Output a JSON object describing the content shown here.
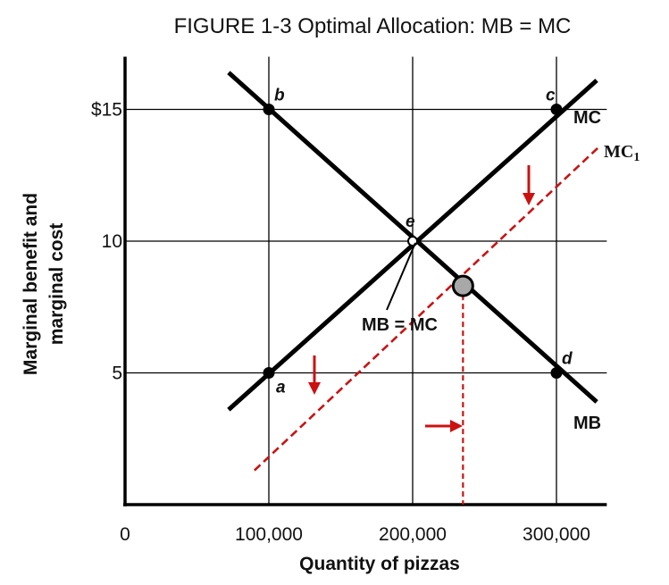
{
  "chart_data": {
    "type": "line",
    "title": "FIGURE 1-3   Optimal Allocation: MB = MC",
    "xlabel": "Quantity of pizzas",
    "ylabel_line1": "Marginal benefit and",
    "ylabel_line2": "marginal cost",
    "x_ticks": [
      {
        "value": 0,
        "label": "0"
      },
      {
        "value": 100000,
        "label": "100,000"
      },
      {
        "value": 200000,
        "label": "200,000"
      },
      {
        "value": 300000,
        "label": "300,000"
      }
    ],
    "y_ticks": [
      {
        "value": 5,
        "label": "5"
      },
      {
        "value": 10,
        "label": "10"
      },
      {
        "value": 15,
        "label": "$15"
      }
    ],
    "xlim": [
      0,
      335000
    ],
    "ylim": [
      0,
      17
    ],
    "series": [
      {
        "name": "MB",
        "color": "#000000",
        "style": "solid",
        "x": [
          72000,
          328000
        ],
        "y": [
          16.4,
          3.9
        ]
      },
      {
        "name": "MC",
        "color": "#000000",
        "style": "solid",
        "x": [
          72000,
          328000
        ],
        "y": [
          3.6,
          16.1
        ]
      },
      {
        "name": "MC1",
        "color": "#cc1111",
        "style": "dashed",
        "x": [
          90000,
          330000
        ],
        "y": [
          1.3,
          13.6
        ]
      }
    ],
    "points": [
      {
        "label": "a",
        "x": 100000,
        "y": 5
      },
      {
        "label": "b",
        "x": 100000,
        "y": 15
      },
      {
        "label": "c",
        "x": 300000,
        "y": 15
      },
      {
        "label": "d",
        "x": 300000,
        "y": 5
      },
      {
        "label": "e",
        "x": 200000,
        "y": 10
      }
    ],
    "new_equilibrium": {
      "x": 235000,
      "y": 8.3
    },
    "annotations": {
      "mb_eq_mc": "MB = MC",
      "mc_label": "MC",
      "mb_label": "MB",
      "mc1_main": "MC",
      "mc1_sub": "1"
    },
    "colors": {
      "curve": "#000000",
      "shift": "#cc1111",
      "eq_fill": "#a8a8a8"
    }
  }
}
